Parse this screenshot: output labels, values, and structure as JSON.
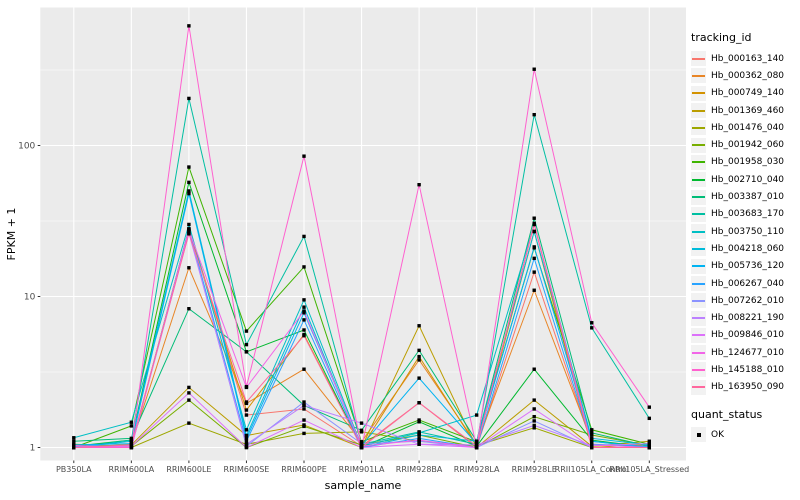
{
  "chart_data": {
    "type": "line",
    "title": "",
    "xlabel": "sample_name",
    "ylabel": "FPKM + 1",
    "yscale": "log10",
    "ylim": [
      0.83,
      815
    ],
    "yticks": [
      1,
      10,
      100
    ],
    "ytick_labels": [
      "1",
      "10",
      "100"
    ],
    "minor_yticks": [
      3.162,
      31.62,
      316.2
    ],
    "grid": "on",
    "panel_bg": "#EBEBEB",
    "grid_color": "#FFFFFF",
    "point_color": "#000000",
    "legend_position": "right",
    "categories": [
      "PB350LA",
      "RRIM600LA",
      "RRIM600LE",
      "RRIM600SE",
      "RRIM600PE",
      "RRIM901LA",
      "RRIM928BA",
      "RRIM928LA",
      "RRIM928LE",
      "RRII105LA_Control",
      "RRII105LA_Stressed"
    ],
    "legend": {
      "color_title": "tracking_id",
      "shape_title": "quant_status",
      "shape_items": [
        {
          "label": "OK"
        }
      ]
    },
    "series": [
      {
        "name": "Hb_000163_140",
        "color": "#F8766D",
        "values": [
          1.0,
          1.02,
          28,
          1.64,
          1.8,
          1.02,
          1.98,
          1.0,
          14.5,
          1.05,
          1.0
        ]
      },
      {
        "name": "Hb_000362_080",
        "color": "#E88526",
        "values": [
          1.0,
          1.05,
          15.5,
          1.96,
          3.3,
          1.09,
          3.8,
          1.05,
          11.0,
          1.1,
          1.02
        ]
      },
      {
        "name": "Hb_000749_140",
        "color": "#D39200",
        "values": [
          1.02,
          1.0,
          28,
          1.77,
          5.6,
          1.0,
          4.0,
          1.02,
          27,
          1.0,
          1.05
        ]
      },
      {
        "name": "Hb_001369_460",
        "color": "#BB9D00",
        "values": [
          1.0,
          1.04,
          2.5,
          1.2,
          1.41,
          1.0,
          6.4,
          1.0,
          2.06,
          1.02,
          1.1
        ]
      },
      {
        "name": "Hb_001476_040",
        "color": "#9DA700",
        "values": [
          1.03,
          1.0,
          1.45,
          1.05,
          1.24,
          1.27,
          1.1,
          1.03,
          1.35,
          1.0,
          1.0
        ]
      },
      {
        "name": "Hb_001942_060",
        "color": "#78AE00",
        "values": [
          1.05,
          1.02,
          2.06,
          1.0,
          1.38,
          1.04,
          1.21,
          1.0,
          1.6,
          1.21,
          1.03
        ]
      },
      {
        "name": "Hb_001958_030",
        "color": "#3FB400",
        "values": [
          1.0,
          1.39,
          72,
          5.9,
          15.7,
          1.09,
          1.52,
          1.09,
          21,
          1.31,
          1.05
        ]
      },
      {
        "name": "Hb_002710_040",
        "color": "#00B92F",
        "values": [
          1.02,
          1.12,
          57,
          4.3,
          6.0,
          1.0,
          1.48,
          1.02,
          3.3,
          1.12,
          1.0
        ]
      },
      {
        "name": "Hb_003387_010",
        "color": "#00BC77",
        "values": [
          1.1,
          1.15,
          8.3,
          4.3,
          1.9,
          1.3,
          4.4,
          1.1,
          33,
          1.25,
          1.02
        ]
      },
      {
        "name": "Hb_003683_170",
        "color": "#00BFA2",
        "values": [
          1.0,
          1.12,
          205,
          4.8,
          25,
          1.05,
          1.27,
          1.05,
          160,
          6.2,
          1.56
        ]
      },
      {
        "name": "Hb_003750_110",
        "color": "#00BFC4",
        "values": [
          1.16,
          1.47,
          30,
          1.31,
          9.5,
          1.02,
          1.25,
          1.64,
          30,
          1.1,
          1.0
        ]
      },
      {
        "name": "Hb_004218_060",
        "color": "#00BBDA",
        "values": [
          1.0,
          1.1,
          50,
          1.2,
          8.5,
          1.0,
          1.21,
          1.1,
          26.9,
          1.15,
          1.04
        ]
      },
      {
        "name": "Hb_005736_120",
        "color": "#00B3F2",
        "values": [
          1.04,
          1.06,
          48,
          1.15,
          7.8,
          1.03,
          2.88,
          1.06,
          21.3,
          1.1,
          1.0
        ]
      },
      {
        "name": "Hb_006267_040",
        "color": "#29A3FF",
        "values": [
          1.0,
          1.0,
          28,
          1.1,
          7.0,
          1.0,
          1.15,
          1.0,
          17.9,
          1.05,
          1.02
        ]
      },
      {
        "name": "Hb_007262_010",
        "color": "#8B93FF",
        "values": [
          1.02,
          1.03,
          27,
          1.02,
          2.0,
          1.06,
          1.1,
          1.0,
          1.5,
          1.0,
          1.0
        ]
      },
      {
        "name": "Hb_008221_190",
        "color": "#BC81FF",
        "values": [
          1.0,
          1.0,
          26.3,
          1.05,
          1.9,
          1.45,
          1.05,
          1.04,
          1.4,
          1.03,
          1.06
        ]
      },
      {
        "name": "Hb_009846_010",
        "color": "#DC71FA",
        "values": [
          1.0,
          1.02,
          2.3,
          1.0,
          1.52,
          1.0,
          1.05,
          1.0,
          1.8,
          1.0,
          1.0
        ]
      },
      {
        "name": "Hb_124677_010",
        "color": "#F265E8",
        "values": [
          1.03,
          1.0,
          27.5,
          2.5,
          8.0,
          1.02,
          1.12,
          1.0,
          30.5,
          1.04,
          1.0
        ]
      },
      {
        "name": "Hb_145188_010",
        "color": "#FF61CF",
        "values": [
          1.0,
          1.0,
          620,
          2.53,
          85,
          1.0,
          55,
          1.0,
          320,
          6.7,
          1.85
        ]
      },
      {
        "name": "Hb_163950_090",
        "color": "#FF689E",
        "values": [
          1.0,
          1.04,
          26,
          2.0,
          5.5,
          1.0,
          1.98,
          1.02,
          30,
          1.0,
          1.0
        ]
      }
    ]
  }
}
